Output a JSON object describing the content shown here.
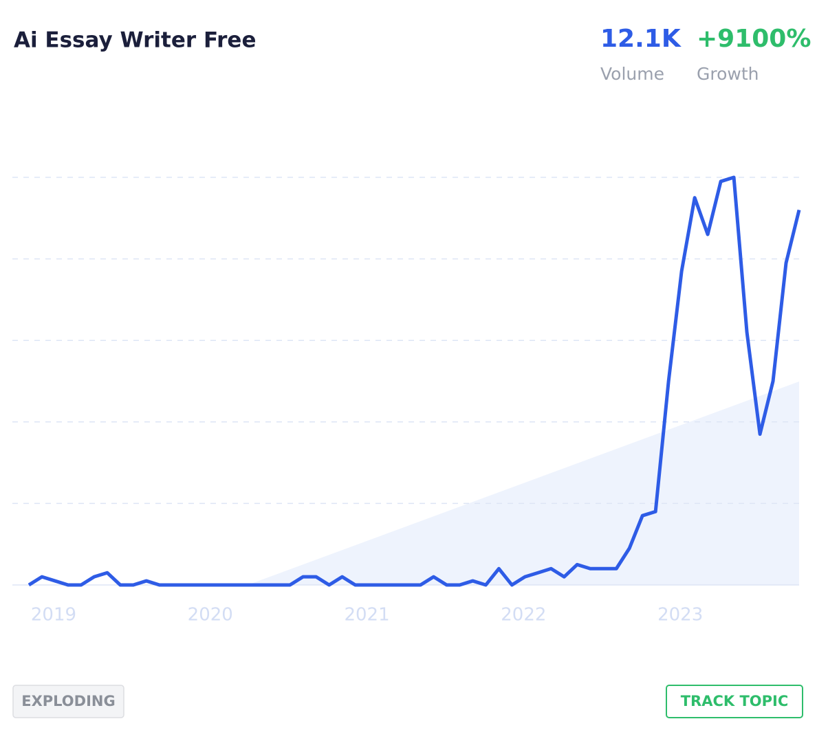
{
  "header": {
    "title": "Ai Essay Writer Free",
    "stats": [
      {
        "value": "12.1K",
        "label": "Volume",
        "color": "#2e5ce6"
      },
      {
        "value": "+9100%",
        "label": "Growth",
        "color": "#2ebd6b"
      }
    ]
  },
  "chart_data": {
    "type": "line",
    "categories": [
      null,
      null,
      "2019",
      null,
      null,
      null,
      null,
      null,
      null,
      null,
      null,
      null,
      null,
      null,
      "2020",
      null,
      null,
      null,
      null,
      null,
      null,
      null,
      null,
      null,
      null,
      null,
      "2021",
      null,
      null,
      null,
      null,
      null,
      null,
      null,
      null,
      null,
      null,
      null,
      "2022",
      null,
      null,
      null,
      null,
      null,
      null,
      null,
      null,
      null,
      null,
      null,
      "2023",
      null,
      null,
      null,
      null,
      null,
      null,
      null,
      null,
      null
    ],
    "values": [
      0,
      2,
      1,
      0,
      0,
      2,
      3,
      0,
      0,
      1,
      0,
      0,
      0,
      0,
      0,
      0,
      0,
      0,
      0,
      0,
      0,
      2,
      2,
      0,
      2,
      0,
      0,
      0,
      0,
      0,
      0,
      2,
      0,
      0,
      1,
      0,
      4,
      0,
      2,
      3,
      4,
      2,
      5,
      4,
      4,
      4,
      9,
      17,
      18,
      50,
      77,
      95,
      86,
      99,
      100,
      62,
      37,
      50,
      79,
      92
    ],
    "color": "#2e5ce6",
    "ylim": [
      0,
      100
    ],
    "ygrid": [
      0,
      20,
      40,
      60,
      80,
      100
    ]
  },
  "buttons": [
    "EXPLODING",
    "TRACK TOPIC"
  ]
}
